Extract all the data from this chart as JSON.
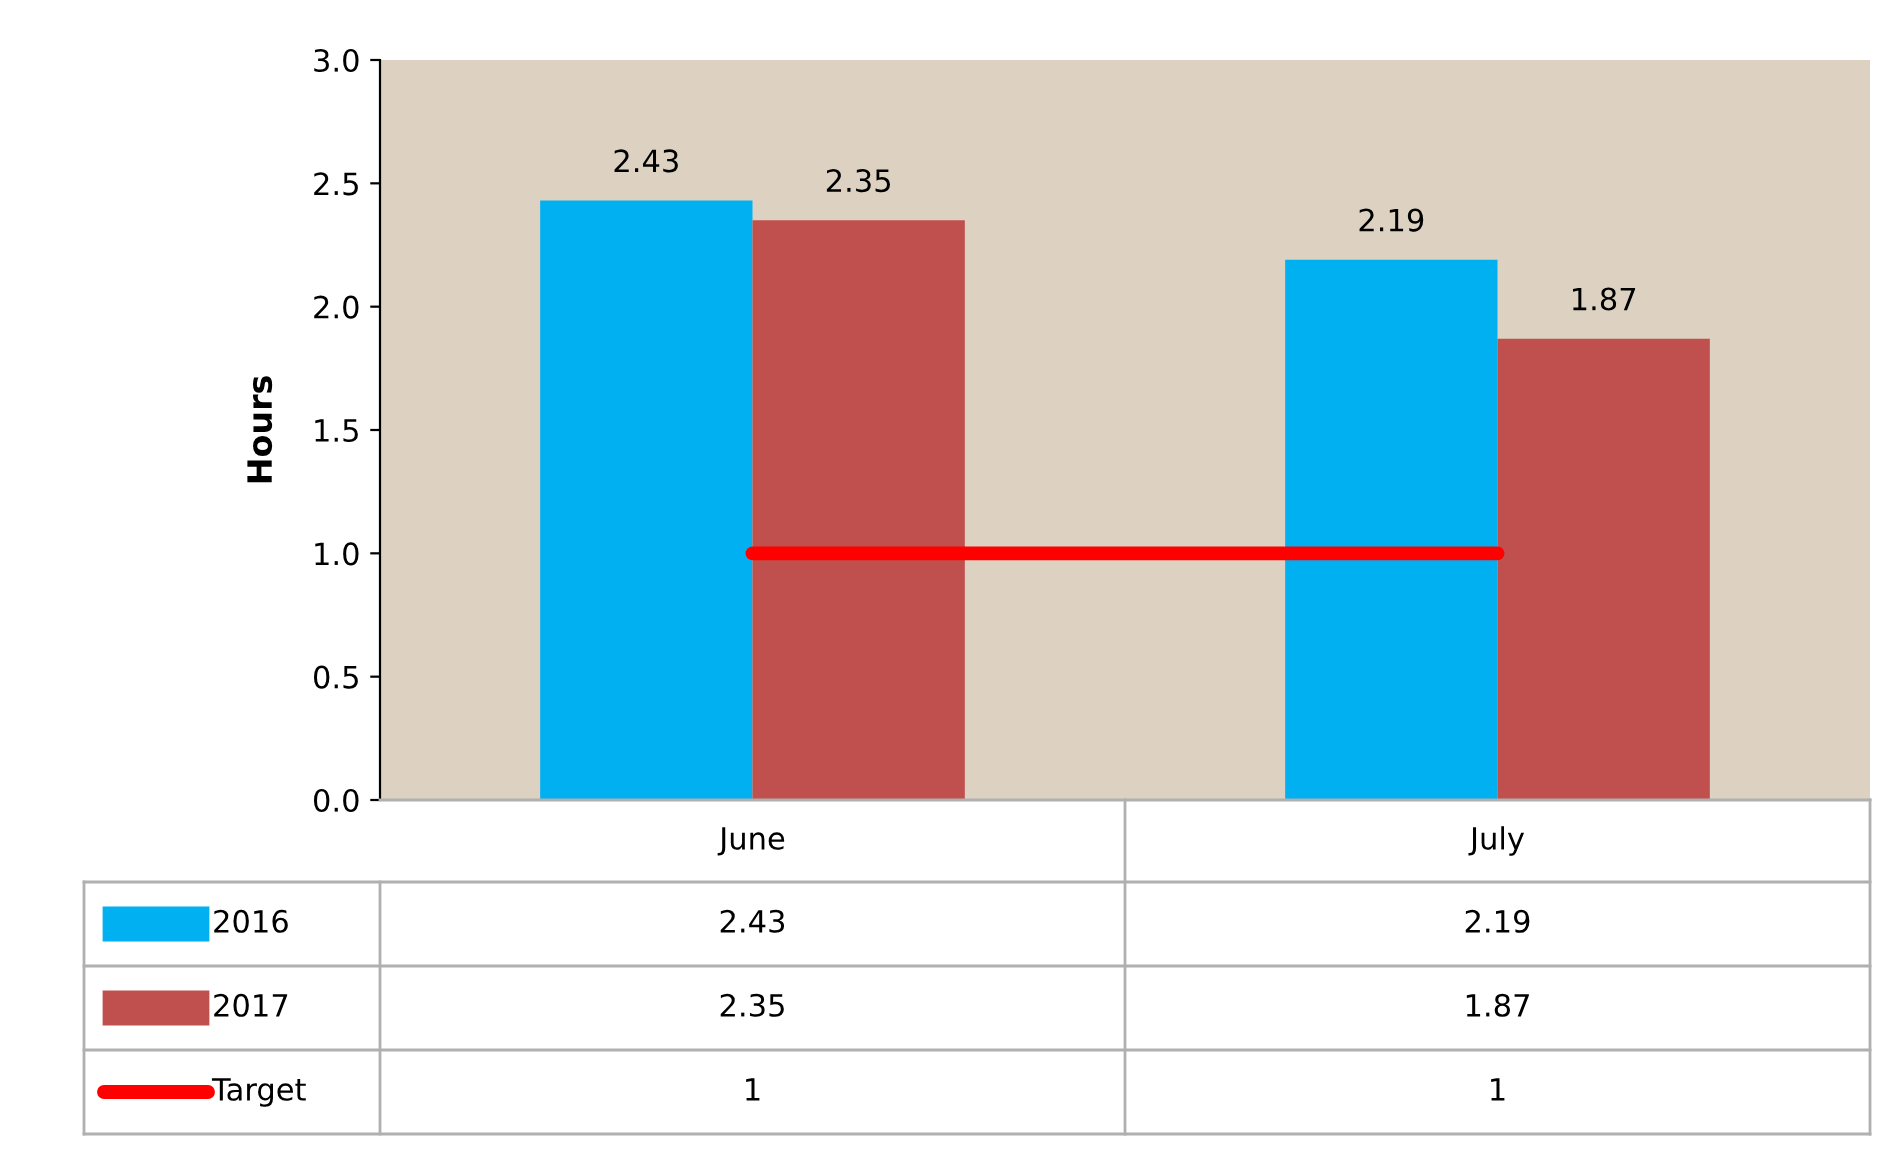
{
  "chart_data": {
    "type": "bar",
    "ylabel": "Hours",
    "categories": [
      "June",
      "July"
    ],
    "series": [
      {
        "name": "2016",
        "color": "#00b0f0",
        "values": [
          2.43,
          2.19
        ]
      },
      {
        "name": "2017",
        "color": "#c0504d",
        "values": [
          2.35,
          1.87
        ]
      },
      {
        "name": "Target",
        "type": "line",
        "color": "#ff0000",
        "values": [
          1,
          1
        ]
      }
    ],
    "ylim": [
      0,
      3
    ],
    "yticks": [
      {
        "value": 0,
        "label": "0.0"
      },
      {
        "value": 0.5,
        "label": "0.5"
      },
      {
        "value": 1,
        "label": "1.0"
      },
      {
        "value": 1.5,
        "label": "1.5"
      },
      {
        "value": 2,
        "label": "2.0"
      },
      {
        "value": 2.5,
        "label": "2.5"
      },
      {
        "value": 3,
        "label": "3.0"
      }
    ],
    "annotations": [
      {
        "text": "2.43",
        "x": "June",
        "y": 2.43
      },
      {
        "text": "2.35",
        "x": "June",
        "y": 2.35
      },
      {
        "text": "2.19",
        "x": "July",
        "y": 2.19
      },
      {
        "text": "1.87",
        "x": "July",
        "y": 1.87
      }
    ],
    "data_labels": true,
    "legend": "bottom",
    "grid": false
  }
}
